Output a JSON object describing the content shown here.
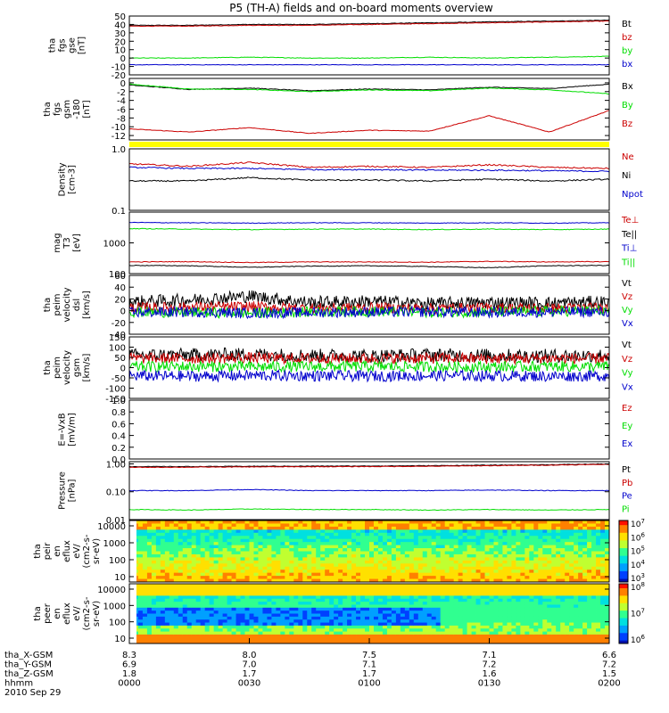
{
  "title": "P5 (TH-A) fields and on-board moments overview",
  "colors": {
    "black": "#000000",
    "red": "#cc0000",
    "green": "#00dd00",
    "blue": "#0000cc",
    "yellow": "#ffff00"
  },
  "chart_data": [
    {
      "type": "line",
      "panel": "fgs_gse",
      "ylabel": [
        "tha",
        "fgs",
        "gse",
        "[nT]"
      ],
      "ylim": [
        -20,
        50
      ],
      "yticks": [
        "50",
        "40",
        "30",
        "20",
        "10",
        "0",
        "-10",
        "-20"
      ],
      "series": [
        {
          "name": "Bt",
          "color": "black",
          "mean": 39,
          "values": [
            39,
            39,
            40,
            40,
            41,
            42,
            43,
            44,
            45
          ]
        },
        {
          "name": "bz",
          "color": "red",
          "mean": 38,
          "values": [
            38,
            38,
            39,
            39,
            40,
            41,
            42,
            43,
            44
          ]
        },
        {
          "name": "by",
          "color": "green",
          "mean": 0,
          "values": [
            0,
            0,
            1,
            0,
            0,
            1,
            0,
            1,
            2
          ]
        },
        {
          "name": "bx",
          "color": "blue",
          "mean": -8,
          "values": [
            -8,
            -8,
            -8,
            -8,
            -8,
            -8,
            -8,
            -8,
            -8
          ]
        }
      ]
    },
    {
      "type": "line",
      "panel": "fgs_gsm_detrended",
      "ylabel": [
        "tha",
        "fgs",
        "gsm",
        "-180",
        "[nT]"
      ],
      "ylim": [
        -13,
        1
      ],
      "yticks": [
        "0",
        "-2",
        "-4",
        "-6",
        "-8",
        "-10",
        "-12"
      ],
      "series": [
        {
          "name": "Bx",
          "color": "black",
          "mean": -1.5,
          "values": [
            -0.5,
            -1.5,
            -1.2,
            -1.8,
            -1.4,
            -1.6,
            -1.0,
            -1.3,
            -0.3
          ]
        },
        {
          "name": "By",
          "color": "green",
          "mean": -1.5,
          "values": [
            -0.3,
            -1.4,
            -1.5,
            -2.0,
            -1.6,
            -1.8,
            -1.2,
            -1.6,
            -2.5
          ]
        },
        {
          "name": "Bz",
          "color": "red",
          "mean": -10.5,
          "values": [
            -10.5,
            -11.2,
            -10.2,
            -11.5,
            -10.8,
            -11.0,
            -7.5,
            -11.2,
            -6.3
          ]
        }
      ]
    },
    {
      "type": "line",
      "panel": "density",
      "ylabel": [
        "Density",
        "[cm-3]"
      ],
      "scale": "log",
      "ylim": [
        0.1,
        1.0
      ],
      "yticks": [
        "1.0",
        "0.1"
      ],
      "series": [
        {
          "name": "Ne",
          "color": "red",
          "mean": 0.55,
          "values": [
            0.57,
            0.52,
            0.6,
            0.5,
            0.52,
            0.5,
            0.55,
            0.5,
            0.48
          ]
        },
        {
          "name": "Ni",
          "color": "black",
          "mean": 0.3,
          "values": [
            0.3,
            0.3,
            0.34,
            0.31,
            0.31,
            0.3,
            0.32,
            0.3,
            0.32
          ]
        },
        {
          "name": "Npot",
          "color": "blue",
          "mean": 0.48,
          "values": [
            0.5,
            0.48,
            0.48,
            0.46,
            0.46,
            0.45,
            0.45,
            0.44,
            0.43
          ]
        }
      ]
    },
    {
      "type": "line",
      "panel": "temperature",
      "ylabel": [
        "mag",
        "T3",
        "[eV]"
      ],
      "scale": "log",
      "ylim": [
        100,
        10000
      ],
      "yticks": [
        "1000",
        "100"
      ],
      "series": [
        {
          "name": "Te⊥",
          "color": "red",
          "mean": 240,
          "values": [
            240,
            245,
            230,
            240,
            240,
            235,
            250,
            240,
            245
          ]
        },
        {
          "name": "Te||",
          "color": "black",
          "mean": 180,
          "values": [
            185,
            180,
            160,
            175,
            180,
            170,
            155,
            180,
            185
          ]
        },
        {
          "name": "Ti⊥",
          "color": "blue",
          "mean": 4500,
          "values": [
            4600,
            4500,
            4400,
            4500,
            4500,
            4400,
            4500,
            4400,
            4500
          ]
        },
        {
          "name": "Ti||",
          "color": "green",
          "mean": 2800,
          "values": [
            2900,
            2800,
            2700,
            2800,
            2800,
            2700,
            2800,
            2700,
            2800
          ]
        }
      ]
    },
    {
      "type": "line",
      "panel": "peim_velocity_dsl",
      "ylabel": [
        "tha",
        "peim",
        "velocity",
        "dsl",
        "[km/s]"
      ],
      "ylim": [
        -40,
        60
      ],
      "yticks": [
        "60",
        "40",
        "20",
        "0",
        "-20",
        "-40"
      ],
      "series": [
        {
          "name": "Vt",
          "color": "black",
          "mean": 15,
          "values": [
            15,
            18,
            25,
            14,
            16,
            12,
            14,
            13,
            15
          ]
        },
        {
          "name": "Vz",
          "color": "red",
          "mean": 5,
          "values": [
            5,
            6,
            7,
            4,
            5,
            4,
            5,
            4,
            5
          ]
        },
        {
          "name": "Vy",
          "color": "green",
          "mean": -2,
          "values": [
            -2,
            -3,
            -4,
            -2,
            -1,
            -3,
            -2,
            -1,
            0
          ]
        },
        {
          "name": "Vx",
          "color": "blue",
          "mean": -3,
          "values": [
            -3,
            -2,
            -4,
            -3,
            -2,
            -2,
            -3,
            -2,
            -2
          ]
        }
      ]
    },
    {
      "type": "line",
      "panel": "peim_velocity_gsm",
      "ylabel": [
        "tha",
        "peim",
        "velocity",
        "gsm",
        "[km/s]"
      ],
      "ylim": [
        -150,
        150
      ],
      "yticks": [
        "150",
        "100",
        "50",
        "0",
        "-50",
        "-100",
        "-150"
      ],
      "series": [
        {
          "name": "Vt",
          "color": "black",
          "mean": 60,
          "values": [
            60,
            62,
            65,
            60,
            58,
            62,
            60,
            58,
            60
          ]
        },
        {
          "name": "Vz",
          "color": "red",
          "mean": 45,
          "values": [
            45,
            45,
            48,
            44,
            45,
            46,
            44,
            45,
            44
          ]
        },
        {
          "name": "Vy",
          "color": "green",
          "mean": 5,
          "values": [
            5,
            6,
            4,
            5,
            6,
            5,
            4,
            6,
            5
          ]
        },
        {
          "name": "Vx",
          "color": "blue",
          "mean": -40,
          "values": [
            -40,
            -42,
            -38,
            -40,
            -41,
            -39,
            -40,
            -42,
            -40
          ]
        }
      ]
    },
    {
      "type": "line",
      "panel": "e_field",
      "ylabel": [
        "E=-VxB",
        "[mV/m]"
      ],
      "ylim": [
        0,
        1.0
      ],
      "yticks": [
        "1.0",
        "0.8",
        "0.6",
        "0.4",
        "0.2",
        "0.0"
      ],
      "series": [
        {
          "name": "Ez",
          "color": "red",
          "values": []
        },
        {
          "name": "Ey",
          "color": "green",
          "values": []
        },
        {
          "name": "Ex",
          "color": "blue",
          "values": []
        }
      ]
    },
    {
      "type": "line",
      "panel": "pressure",
      "ylabel": [
        "Pressure",
        "[nPa]"
      ],
      "scale": "log",
      "ylim": [
        0.01,
        1.2
      ],
      "yticks": [
        "1.00",
        "0.10",
        "0.01"
      ],
      "series": [
        {
          "name": "Pt",
          "color": "black",
          "mean": 0.82,
          "values": [
            0.8,
            0.8,
            0.82,
            0.83,
            0.84,
            0.86,
            0.9,
            0.93,
            1.0
          ]
        },
        {
          "name": "Pb",
          "color": "red",
          "mean": 0.78,
          "values": [
            0.75,
            0.76,
            0.78,
            0.79,
            0.8,
            0.82,
            0.86,
            0.9,
            0.96
          ]
        },
        {
          "name": "Pe",
          "color": "blue",
          "mean": 0.11,
          "values": [
            0.11,
            0.11,
            0.12,
            0.11,
            0.11,
            0.11,
            0.115,
            0.11,
            0.11
          ]
        },
        {
          "name": "Pi",
          "color": "green",
          "mean": 0.023,
          "values": [
            0.023,
            0.022,
            0.024,
            0.023,
            0.023,
            0.022,
            0.023,
            0.022,
            0.023
          ]
        }
      ]
    },
    {
      "type": "heatmap",
      "panel": "ion_spectrogram",
      "ylabel": [
        "tha",
        "peir",
        "en",
        "eflux",
        "eV/",
        "(cm2-s-",
        "sr-eV)"
      ],
      "ylim": [
        10,
        10000
      ],
      "yticks": [
        "10000",
        "1000",
        "100",
        "10"
      ],
      "colorbar_ticks": [
        "10^7",
        "10^6",
        "10^5",
        "10^4",
        "10^3"
      ]
    },
    {
      "type": "heatmap",
      "panel": "electron_spectrogram",
      "ylabel": [
        "tha",
        "peer",
        "en",
        "eflux",
        "eV/",
        "(cm2-s-",
        "sr-eV)"
      ],
      "ylim": [
        10,
        10000
      ],
      "yticks": [
        "10000",
        "1000",
        "100",
        "10"
      ],
      "colorbar_ticks": [
        "10^8",
        "10^7",
        "10^6"
      ]
    }
  ],
  "xaxis": {
    "times": [
      "0000",
      "0030",
      "0100",
      "0130",
      "0200"
    ],
    "rows": [
      {
        "label": "tha_X-GSM",
        "values": [
          "8.3",
          "8.0",
          "7.5",
          "7.1",
          "6.6"
        ]
      },
      {
        "label": "tha_Y-GSM",
        "values": [
          "6.9",
          "7.0",
          "7.1",
          "7.2",
          "7.2"
        ]
      },
      {
        "label": "tha_Z-GSM",
        "values": [
          "1.8",
          "1.7",
          "1.7",
          "1.6",
          "1.5"
        ]
      },
      {
        "label": "hhmm",
        "values": [
          "0000",
          "0030",
          "0100",
          "0130",
          "0200"
        ]
      }
    ],
    "date": "2010 Sep 29"
  }
}
